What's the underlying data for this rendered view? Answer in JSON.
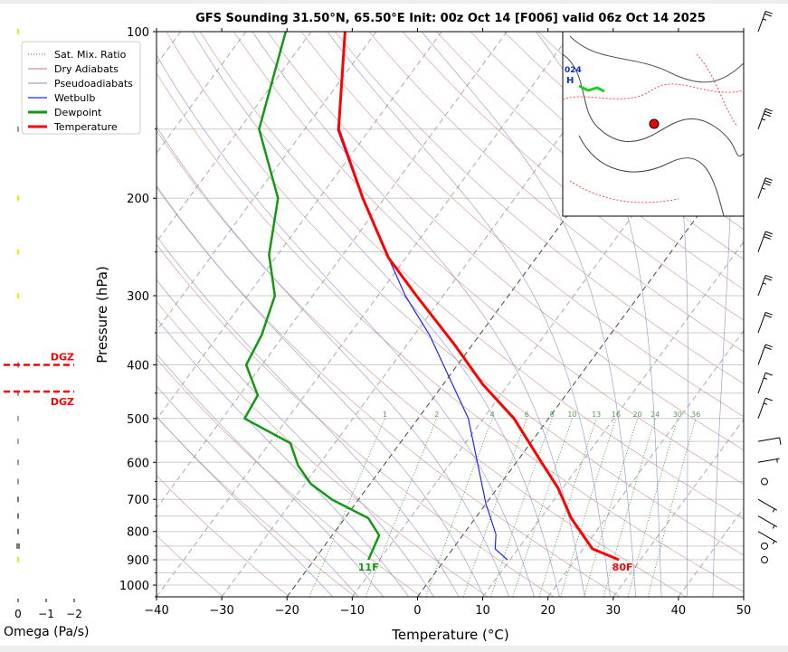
{
  "chart_data": {
    "type": "line",
    "title": "GFS Sounding 31.50°N, 65.50°E Init: 00z Oct 14 [F006] valid 06z Oct 14 2025",
    "xlabel": "Temperature (°C)",
    "ylabel": "Pressure (hPa)",
    "xlim": [
      -40,
      50
    ],
    "ylim": [
      1050,
      100
    ],
    "xticks": [
      "−40",
      "−30",
      "−20",
      "−10",
      "0",
      "10",
      "20",
      "30",
      "40",
      "50"
    ],
    "xtick_values": [
      -40,
      -30,
      -20,
      -10,
      0,
      10,
      20,
      30,
      40,
      50
    ],
    "yticks": [
      "100",
      "200",
      "300",
      "400",
      "500",
      "600",
      "700",
      "800",
      "900",
      "1000"
    ],
    "ytick_values": [
      100,
      200,
      300,
      400,
      500,
      600,
      700,
      800,
      900,
      1000
    ],
    "legend": {
      "placement": "top-left",
      "entries": [
        "Sat. Mix. Ratio",
        "Dry Adiabats",
        "Pseudoadiabats",
        "Wetbulb",
        "Dewpoint",
        "Temperature"
      ]
    },
    "colors": {
      "temperature": "#ff0000",
      "dewpoint": "#119911",
      "wetbulb": "#2222ff",
      "dry": "#c97a7a",
      "moist": "#8888cc",
      "mix": "#2e8b2e",
      "dgz": "#ff0000"
    },
    "series": [
      {
        "name": "Temperature",
        "p": [
          900,
          860,
          757,
          668,
          597,
          500,
          434,
          366,
          300,
          256,
          200,
          150,
          100
        ],
        "t": [
          26.7,
          21.4,
          14.7,
          9.3,
          3.6,
          -5.3,
          -13.9,
          -23,
          -34.1,
          -42.7,
          -53.3,
          -64.8,
          -74.8
        ]
      },
      {
        "name": "Dewpoint",
        "p": [
          900,
          813,
          757,
          701,
          656,
          608,
          554,
          500,
          454,
          400,
          353,
          300,
          253,
          200,
          150,
          100
        ],
        "t": [
          -11.7,
          -12.8,
          -16.4,
          -24,
          -29.1,
          -33.1,
          -36.8,
          -46.6,
          -47.2,
          -52.4,
          -53.4,
          -55.8,
          -61.3,
          -66.3,
          -77,
          -83.9
        ]
      },
      {
        "name": "Wetbulb",
        "p": [
          900,
          860,
          810,
          713,
          500,
          353,
          300,
          200,
          150
        ],
        "t": [
          9.6,
          6.5,
          5,
          0,
          -12.3,
          -27.7,
          -35.8,
          -53.4,
          -65
        ]
      }
    ],
    "surface_labels": {
      "temperature": "80F",
      "dewpoint": "11F"
    },
    "mixing_ratio_labels": [
      "1",
      "2",
      "4",
      "6",
      "8",
      "10",
      "13",
      "16",
      "20",
      "24",
      "30",
      "36"
    ],
    "mixing_ratio_values": [
      1,
      2,
      4,
      6,
      8,
      10,
      13,
      16,
      20,
      24,
      30,
      36
    ],
    "dgz": {
      "label": "DGZ",
      "top_hpa": 400,
      "bottom_hpa": 447
    },
    "omega": {
      "xlabel": "Omega (Pa/s)",
      "ticks": [
        "0",
        "−1",
        "−2"
      ],
      "tick_values": [
        0,
        -1,
        -2
      ]
    },
    "wind_barbs": [
      {
        "p": 100,
        "kt": 25
      },
      {
        "p": 150,
        "kt": 35
      },
      {
        "p": 200,
        "kt": 35
      },
      {
        "p": 250,
        "kt": 30
      },
      {
        "p": 300,
        "kt": 25
      },
      {
        "p": 350,
        "kt": 20
      },
      {
        "p": 400,
        "kt": 20
      },
      {
        "p": 450,
        "kt": 15
      },
      {
        "p": 500,
        "kt": 15
      },
      {
        "p": 550,
        "kt": 10
      },
      {
        "p": 600,
        "kt": 5
      },
      {
        "p": 650,
        "kt": 0
      },
      {
        "p": 700,
        "kt": 5
      },
      {
        "p": 750,
        "kt": 5
      },
      {
        "p": 800,
        "kt": 5
      },
      {
        "p": 850,
        "kt": 0
      },
      {
        "p": 900,
        "kt": 0
      }
    ]
  }
}
